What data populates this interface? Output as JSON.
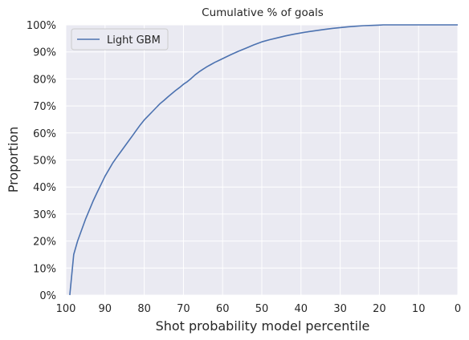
{
  "chart_data": {
    "type": "line",
    "title": "Cumulative % of goals",
    "xlabel": "Shot probability model percentile",
    "ylabel": "Proportion",
    "xlim": [
      100,
      0
    ],
    "ylim": [
      0,
      1
    ],
    "x_reversed": true,
    "grid": true,
    "legend_position": "top-left",
    "x_ticks": [
      100,
      90,
      80,
      70,
      60,
      50,
      40,
      30,
      20,
      10,
      0
    ],
    "y_ticks": [
      0,
      0.1,
      0.2,
      0.3,
      0.4,
      0.5,
      0.6,
      0.7,
      0.8,
      0.9,
      1.0
    ],
    "x_tick_labels": [
      "100",
      "90",
      "80",
      "70",
      "60",
      "50",
      "40",
      "30",
      "20",
      "10",
      "0"
    ],
    "y_tick_labels": [
      "0%",
      "10%",
      "20%",
      "30%",
      "40%",
      "50%",
      "60%",
      "70%",
      "80%",
      "90%",
      "100%"
    ],
    "series": [
      {
        "name": "Light GBM",
        "color": "#4c72b0",
        "x": [
          99,
          98,
          97,
          96,
          95,
          94,
          93,
          92,
          91,
          90,
          89,
          88,
          87,
          86,
          85,
          84,
          83,
          82,
          81,
          80,
          79,
          78,
          77,
          76,
          75,
          74,
          73,
          72,
          71,
          70,
          69,
          68,
          67,
          66,
          65,
          64,
          63,
          62,
          61,
          60,
          58,
          56,
          54,
          52,
          50,
          48,
          46,
          44,
          42,
          40,
          38,
          36,
          34,
          32,
          30,
          28,
          26,
          24,
          22,
          20,
          19,
          18,
          15,
          10,
          5,
          0
        ],
        "y": [
          0.0,
          0.15,
          0.2,
          0.24,
          0.28,
          0.315,
          0.35,
          0.38,
          0.41,
          0.44,
          0.465,
          0.49,
          0.51,
          0.53,
          0.55,
          0.57,
          0.59,
          0.61,
          0.63,
          0.648,
          0.663,
          0.678,
          0.693,
          0.708,
          0.72,
          0.733,
          0.745,
          0.757,
          0.768,
          0.78,
          0.79,
          0.802,
          0.815,
          0.826,
          0.836,
          0.845,
          0.853,
          0.861,
          0.868,
          0.875,
          0.889,
          0.902,
          0.914,
          0.926,
          0.937,
          0.945,
          0.952,
          0.959,
          0.965,
          0.97,
          0.975,
          0.979,
          0.983,
          0.987,
          0.99,
          0.993,
          0.995,
          0.997,
          0.998,
          0.999,
          1.0,
          1.0,
          1.0,
          1.0,
          1.0,
          1.0
        ]
      }
    ]
  }
}
